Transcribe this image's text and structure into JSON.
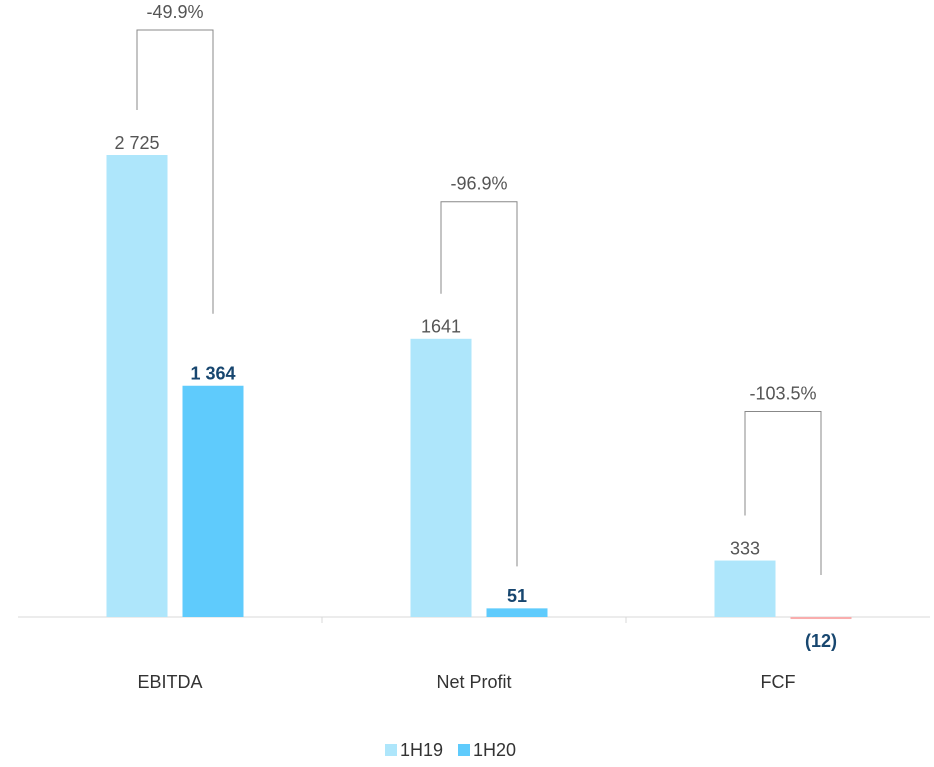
{
  "chart_data": {
    "type": "bar",
    "categories": [
      "EBITDA",
      "Net Profit",
      "FCF"
    ],
    "series": [
      {
        "name": "1H19",
        "color": "#aee6fb",
        "values": [
          2725,
          1641,
          333
        ],
        "value_labels": [
          "2 725",
          "1641",
          "333"
        ]
      },
      {
        "name": "1H20",
        "color": "#5fcbfc",
        "negative_color": "#f9adad",
        "values": [
          1364,
          51,
          -12
        ],
        "value_labels": [
          "1 364",
          "51",
          "(12)"
        ]
      }
    ],
    "annotations": [
      "-49.9%",
      "-96.9%",
      "-103.5%"
    ],
    "legend": "bottom"
  }
}
